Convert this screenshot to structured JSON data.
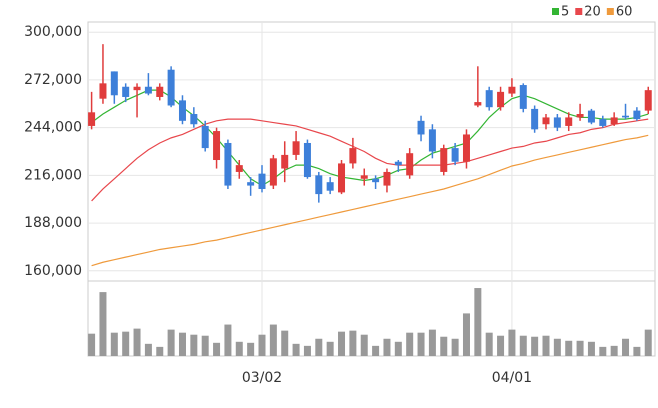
{
  "chart_data": {
    "type": "candlestick",
    "categories": [
      null,
      null,
      null,
      null,
      null,
      null,
      null,
      null,
      null,
      null,
      null,
      null,
      null,
      null,
      null,
      "03/02",
      null,
      null,
      null,
      null,
      null,
      null,
      null,
      null,
      null,
      null,
      null,
      null,
      null,
      null,
      null,
      null,
      null,
      null,
      null,
      null,
      null,
      "04/01",
      null,
      null,
      null,
      null,
      null,
      null,
      null,
      null,
      null,
      null,
      null,
      null
    ],
    "open": [
      245000,
      261000,
      277000,
      268000,
      266000,
      268000,
      262000,
      278000,
      260000,
      252000,
      245000,
      225000,
      235000,
      218000,
      212000,
      217000,
      210000,
      220000,
      228000,
      235000,
      216000,
      212000,
      206000,
      223000,
      214000,
      214000,
      210000,
      224000,
      216000,
      248000,
      243000,
      218000,
      232000,
      224000,
      257000,
      266000,
      256000,
      264000,
      269000,
      255000,
      246000,
      250000,
      245000,
      250000,
      254000,
      249000,
      246000,
      251000,
      254000,
      254000
    ],
    "high": [
      265000,
      293000,
      277000,
      270000,
      270000,
      276000,
      270000,
      280000,
      263000,
      256000,
      248000,
      244000,
      237000,
      225000,
      215000,
      222000,
      228000,
      236000,
      242000,
      237000,
      218000,
      215000,
      225000,
      238000,
      220000,
      216000,
      220000,
      225000,
      232000,
      251000,
      246000,
      234000,
      235000,
      243000,
      280000,
      268000,
      268000,
      273000,
      270000,
      257000,
      252000,
      252000,
      253000,
      258000,
      255000,
      251000,
      253000,
      258000,
      256000,
      268000
    ],
    "low": [
      243000,
      258000,
      258000,
      259000,
      250000,
      263000,
      260000,
      256000,
      246000,
      244000,
      230000,
      220000,
      208000,
      214000,
      204000,
      206000,
      208000,
      212000,
      225000,
      214000,
      200000,
      205000,
      205000,
      220000,
      210000,
      208000,
      206000,
      218000,
      214000,
      236000,
      226000,
      216000,
      222000,
      220000,
      256000,
      254000,
      254000,
      262000,
      253000,
      241000,
      243000,
      242000,
      242000,
      248000,
      246000,
      244000,
      245000,
      249000,
      248000,
      252000
    ],
    "close": [
      253000,
      270000,
      263000,
      262000,
      268000,
      264000,
      268000,
      257000,
      248000,
      246000,
      232000,
      242000,
      210000,
      222000,
      210000,
      208000,
      226000,
      228000,
      236000,
      215000,
      205000,
      207000,
      223000,
      232000,
      216000,
      212000,
      218000,
      222000,
      229000,
      240000,
      230000,
      232000,
      224000,
      240000,
      259000,
      256000,
      265000,
      268000,
      255000,
      243000,
      250000,
      244000,
      250000,
      252000,
      247000,
      245000,
      250000,
      250000,
      249000,
      266000
    ],
    "up_color": "#e03c3c",
    "down_color": "#3d7fd9",
    "series": [
      {
        "name": "5",
        "color": "#33b533",
        "values": [
          247000,
          252000,
          256000,
          260000,
          263000,
          266000,
          266000,
          262000,
          256000,
          251000,
          245000,
          238000,
          230000,
          222000,
          214000,
          210000,
          214000,
          219000,
          222000,
          222000,
          220000,
          217000,
          215000,
          214000,
          213000,
          214000,
          216000,
          219000,
          220000,
          225000,
          229000,
          231000,
          233000,
          235000,
          242000,
          250000,
          256000,
          261000,
          263000,
          261000,
          258000,
          255000,
          252000,
          250000,
          250000,
          249000,
          249000,
          249000,
          250000,
          252000
        ]
      },
      {
        "name": "20",
        "color": "#e8474c",
        "values": [
          201000,
          208000,
          214000,
          220000,
          226000,
          231000,
          235000,
          238000,
          240000,
          243000,
          246000,
          248000,
          249000,
          249000,
          249000,
          248000,
          247000,
          246000,
          245000,
          243000,
          241000,
          239000,
          236000,
          233000,
          230000,
          226000,
          223000,
          222000,
          222000,
          222000,
          222000,
          222000,
          223000,
          224000,
          226000,
          228000,
          230000,
          232000,
          233000,
          235000,
          236000,
          238000,
          240000,
          241000,
          243000,
          244000,
          246000,
          247000,
          248000,
          249000
        ]
      },
      {
        "name": "60",
        "color": "#ef9a3c",
        "values": [
          163000,
          165000,
          166500,
          168000,
          169500,
          171000,
          172500,
          173500,
          174500,
          175500,
          177000,
          178000,
          179500,
          181000,
          182500,
          184000,
          185500,
          187000,
          188500,
          190000,
          191500,
          193000,
          194500,
          196000,
          197500,
          199000,
          200500,
          202000,
          203500,
          205000,
          206500,
          208000,
          210000,
          212000,
          214000,
          216500,
          219000,
          221500,
          223000,
          225000,
          226500,
          228000,
          229500,
          231000,
          232500,
          234000,
          235500,
          237000,
          238000,
          239500
        ]
      }
    ],
    "volume": {
      "color": "#999999",
      "ylim": [
        0,
        70
      ],
      "values": [
        22,
        63,
        23,
        24,
        27,
        12,
        9,
        26,
        23,
        21,
        20,
        13,
        31,
        14,
        13,
        21,
        31,
        25,
        12,
        10,
        17,
        14,
        24,
        25,
        21,
        10,
        17,
        14,
        23,
        23,
        26,
        19,
        17,
        42,
        67,
        23,
        20,
        26,
        20,
        19,
        20,
        17,
        15,
        15,
        14,
        9,
        10,
        17,
        9,
        26
      ]
    },
    "ylim": [
      154000,
      306000
    ],
    "yticks": [
      {
        "value": 160000,
        "label": "160,000"
      },
      {
        "value": 188000,
        "label": "188,000"
      },
      {
        "value": 216000,
        "label": "216,000"
      },
      {
        "value": 244000,
        "label": "244,000"
      },
      {
        "value": 272000,
        "label": "272,000"
      },
      {
        "value": 300000,
        "label": "300,000"
      }
    ],
    "grid": true
  }
}
